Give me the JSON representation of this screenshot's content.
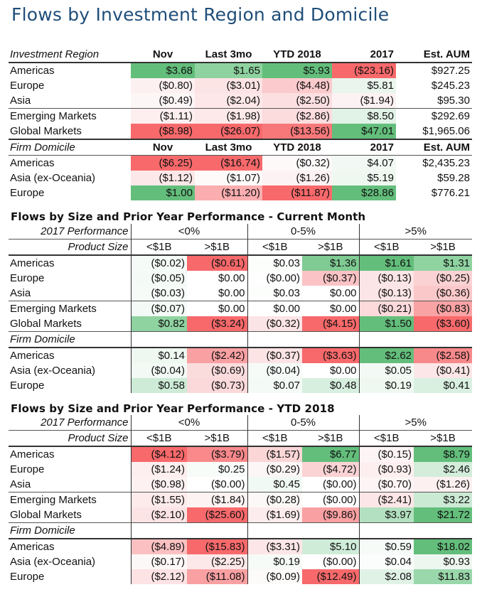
{
  "title": "Flows by Investment Region and Domicile",
  "table1": {
    "region_header": {
      "label": "Investment Region",
      "cols": [
        "Nov",
        "Last 3mo",
        "YTD 2018",
        "2017",
        "Est. AUM"
      ]
    },
    "region_rows": [
      {
        "label": "Americas",
        "cells": [
          [
            "$3.68",
            "#63be7b"
          ],
          [
            "$1.65",
            "#8ed39f"
          ],
          [
            "$5.93",
            "#63be7b"
          ],
          [
            "($23.16)",
            "#f8696b"
          ],
          [
            "$927.25",
            ""
          ]
        ]
      },
      {
        "label": "Europe",
        "cells": [
          [
            "($0.80)",
            "#fcf0f1"
          ],
          [
            "($3.01)",
            "#fce3e4"
          ],
          [
            "($4.48)",
            "#fbcacc"
          ],
          [
            "$5.81",
            "#e9f5ed"
          ],
          [
            "$245.23",
            ""
          ]
        ]
      },
      {
        "label": "Asia",
        "cells": [
          [
            "($0.49)",
            "#fdf6f7"
          ],
          [
            "($2.04)",
            "#fde7e8"
          ],
          [
            "($2.50)",
            "#fcdfe0"
          ],
          [
            "($1.94)",
            "#fdf2f3"
          ],
          [
            "$95.30",
            ""
          ]
        ]
      },
      {
        "label": "Emerging Markets",
        "cells": [
          [
            "($1.11)",
            "#fdeeef"
          ],
          [
            "($1.98)",
            "#fde9ea"
          ],
          [
            "($2.86)",
            "#fcdcdd"
          ],
          [
            "$8.50",
            "#e1f2e6"
          ],
          [
            "$292.69",
            ""
          ]
        ]
      },
      {
        "label": "Global Markets",
        "cells": [
          [
            "($8.98)",
            "#f8696b"
          ],
          [
            "($26.07)",
            "#f8696b"
          ],
          [
            "($13.56)",
            "#f8787a"
          ],
          [
            "$47.01",
            "#63be7b"
          ],
          [
            "$1,965.06",
            ""
          ]
        ]
      }
    ],
    "domicile_header": {
      "label": "Firm Domicile",
      "cols": [
        "Nov",
        "Last 3mo",
        "YTD 2018",
        "2017",
        "Est. AUM"
      ]
    },
    "domicile_rows": [
      {
        "label": "Americas",
        "cells": [
          [
            "($6.25)",
            "#f8696b"
          ],
          [
            "($16.74)",
            "#f8696b"
          ],
          [
            "($0.32)",
            "#fdf9f9"
          ],
          [
            "$4.07",
            "#f2f9f4"
          ],
          [
            "$2,435.23",
            ""
          ]
        ]
      },
      {
        "label": "Asia (ex-Oceania)",
        "cells": [
          [
            "($1.12)",
            "#fce8e9"
          ],
          [
            "($1.07)",
            "#fefafa"
          ],
          [
            "($1.26)",
            "#fdf2f3"
          ],
          [
            "$5.19",
            "#eef8f1"
          ],
          [
            "$59.28",
            ""
          ]
        ]
      },
      {
        "label": "Europe",
        "cells": [
          [
            "$1.00",
            "#63be7b"
          ],
          [
            "($11.20)",
            "#fbaeb0"
          ],
          [
            "($11.87)",
            "#f8696b"
          ],
          [
            "$28.86",
            "#63be7b"
          ],
          [
            "$776.21",
            ""
          ]
        ]
      }
    ]
  },
  "table2": {
    "title": "Flows by Size and Prior Year Performance - Current Month",
    "perf_label": "2017 Performance",
    "groups": [
      "<0%",
      "0-5%",
      ">5%"
    ],
    "size_label": "Product Size",
    "size_cols": [
      "<$1B",
      ">$1B",
      "<$1B",
      ">$1B",
      "<$1B",
      ">$1B"
    ],
    "region_rows": [
      {
        "label": "Americas",
        "cells": [
          [
            "($0.02)",
            "#f5fbf7"
          ],
          [
            "($0.61)",
            "#f8696b"
          ],
          [
            "$0.03",
            "#fcfefc"
          ],
          [
            "$1.36",
            "#7fcb93"
          ],
          [
            "$1.61",
            "#63be7b"
          ],
          [
            "$1.31",
            "#8fd3a1"
          ]
        ]
      },
      {
        "label": "Europe",
        "cells": [
          [
            "($0.05)",
            "#f4faf6"
          ],
          [
            "$0.00",
            ""
          ],
          [
            "($0.00)",
            "#fefefe"
          ],
          [
            "($0.37)",
            "#fbc3c5"
          ],
          [
            "($0.13)",
            "#fce5e6"
          ],
          [
            "($0.25)",
            "#fbd2d3"
          ]
        ]
      },
      {
        "label": "Asia",
        "cells": [
          [
            "($0.03)",
            "#f6fbf8"
          ],
          [
            "$0.00",
            ""
          ],
          [
            "$0.03",
            "#fcfefc"
          ],
          [
            "$0.00",
            ""
          ],
          [
            "($0.13)",
            "#fce5e6"
          ],
          [
            "($0.36)",
            "#fbc8c9"
          ]
        ]
      },
      {
        "label": "Emerging Markets",
        "cells": [
          [
            "($0.07)",
            "#f4faf6"
          ],
          [
            "$0.00",
            ""
          ],
          [
            "$0.00",
            ""
          ],
          [
            "$0.00",
            ""
          ],
          [
            "($0.21)",
            "#fcdadb"
          ],
          [
            "($0.83)",
            "#f9a3a5"
          ]
        ]
      },
      {
        "label": "Global Markets",
        "cells": [
          [
            "$0.82",
            "#8fd3a1"
          ],
          [
            "($3.24)",
            "#f8696b"
          ],
          [
            "($0.32)",
            "#fbe4e5"
          ],
          [
            "($4.15)",
            "#f8696b"
          ],
          [
            "$1.50",
            "#63be7b"
          ],
          [
            "($3.60)",
            "#f8696b"
          ]
        ]
      }
    ],
    "domicile_label": "Firm Domicile",
    "domicile_rows": [
      {
        "label": "Americas",
        "cells": [
          [
            "$0.14",
            "#eef8f1"
          ],
          [
            "($2.42)",
            "#f8a0a2"
          ],
          [
            "($0.37)",
            "#fce4e5"
          ],
          [
            "($3.63)",
            "#f8696b"
          ],
          [
            "$2.62",
            "#63be7b"
          ],
          [
            "($2.58)",
            "#f8898b"
          ]
        ]
      },
      {
        "label": "Asia (ex-Oceania)",
        "cells": [
          [
            "($0.04)",
            "#f3faf5"
          ],
          [
            "($0.69)",
            "#fbdcdd"
          ],
          [
            "($0.04)",
            "#f6fbf8"
          ],
          [
            "$0.00",
            ""
          ],
          [
            "$0.05",
            "#f3faf5"
          ],
          [
            "($0.41)",
            "#fce6e7"
          ]
        ]
      },
      {
        "label": "Europe",
        "cells": [
          [
            "$0.58",
            "#cdebd6"
          ],
          [
            "($0.73)",
            "#fbd9da"
          ],
          [
            "$0.07",
            "#f4faf6"
          ],
          [
            "$0.48",
            "#d7efde"
          ],
          [
            "$0.19",
            "#eef8f1"
          ],
          [
            "$0.41",
            "#d9f0e0"
          ]
        ]
      }
    ]
  },
  "table3": {
    "title": "Flows by Size and Prior Year Performance - YTD 2018",
    "perf_label": "2017 Performance",
    "groups": [
      "<0%",
      "0-5%",
      ">5%"
    ],
    "size_label": "Product Size",
    "size_cols": [
      "<$1B",
      ">$1B",
      "<$1B",
      ">$1B",
      "<$1B",
      ">$1B"
    ],
    "region_rows": [
      {
        "label": "Americas",
        "cells": [
          [
            "($4.12)",
            "#f8696b"
          ],
          [
            "($3.79)",
            "#f9898b"
          ],
          [
            "($1.57)",
            "#fbd6d7"
          ],
          [
            "$6.77",
            "#63be7b"
          ],
          [
            "($0.15)",
            "#fdf4f5"
          ],
          [
            "$8.79",
            "#63be7b"
          ]
        ]
      },
      {
        "label": "Europe",
        "cells": [
          [
            "($1.24)",
            "#fdeeef"
          ],
          [
            "$0.25",
            "#f8fcf9"
          ],
          [
            "($0.29)",
            "#fdf6f6"
          ],
          [
            "($4.72)",
            "#fbd3d4"
          ],
          [
            "($0.93)",
            "#fdeff0"
          ],
          [
            "$2.46",
            "#d3edda"
          ]
        ]
      },
      {
        "label": "Asia",
        "cells": [
          [
            "($0.98)",
            "#fdf1f2"
          ],
          [
            "($0.00)",
            ""
          ],
          [
            "$0.45",
            "#f0f9f3"
          ],
          [
            "($0.00)",
            ""
          ],
          [
            "($0.70)",
            "#fdf4f5"
          ],
          [
            "($1.26)",
            "#fdf0f1"
          ]
        ]
      },
      {
        "label": "Emerging Markets",
        "cells": [
          [
            "($1.55)",
            "#fdebec"
          ],
          [
            "($1.84)",
            "#fdf3f3"
          ],
          [
            "($0.28)",
            "#fdf8f8"
          ],
          [
            "($0.00)",
            ""
          ],
          [
            "($2.41)",
            "#fde6e7"
          ],
          [
            "$3.22",
            "#cbead4"
          ]
        ]
      },
      {
        "label": "Global Markets",
        "cells": [
          [
            "($2.10)",
            "#fce4e5"
          ],
          [
            "($25.60)",
            "#f8696b"
          ],
          [
            "($1.69)",
            "#fdeced"
          ],
          [
            "($9.86)",
            "#f9a0a2"
          ],
          [
            "$3.97",
            "#b3e0c0"
          ],
          [
            "$21.72",
            "#63be7b"
          ]
        ]
      }
    ],
    "domicile_label": "Firm Domicile",
    "domicile_rows": [
      {
        "label": "Americas",
        "cells": [
          [
            "($4.89)",
            "#fbc0c1"
          ],
          [
            "($15.83)",
            "#f8696b"
          ],
          [
            "($3.31)",
            "#fde6e7"
          ],
          [
            "$5.10",
            "#cfecd8"
          ],
          [
            "$0.59",
            "#f6fbf8"
          ],
          [
            "$18.02",
            "#63be7b"
          ]
        ]
      },
      {
        "label": "Asia (ex-Oceania)",
        "cells": [
          [
            "($0.17)",
            "#fdf8f8"
          ],
          [
            "($2.25)",
            "#fde8e9"
          ],
          [
            "$0.19",
            "#f7fbf8"
          ],
          [
            "($0.00)",
            ""
          ],
          [
            "$0.04",
            "#fbfdfc"
          ],
          [
            "$0.93",
            "#edf7f0"
          ]
        ]
      },
      {
        "label": "Europe",
        "cells": [
          [
            "($2.12)",
            "#fde3e4"
          ],
          [
            "($11.08)",
            "#f9a0a2"
          ],
          [
            "($0.09)",
            "#fdfafa"
          ],
          [
            "($12.49)",
            "#f8696b"
          ],
          [
            "$2.08",
            "#e0f2e6"
          ],
          [
            "$11.83",
            "#9ad7aa"
          ]
        ]
      }
    ]
  }
}
